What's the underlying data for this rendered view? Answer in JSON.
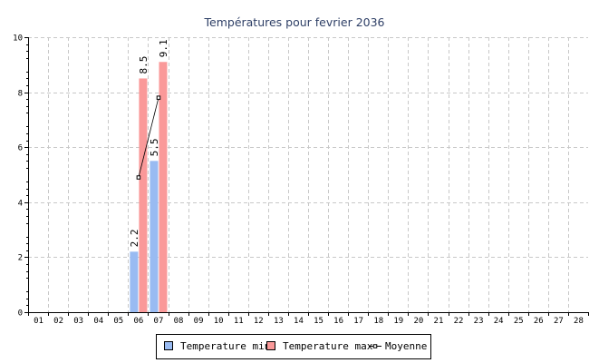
{
  "chart_data": {
    "type": "bar",
    "title": "Températures pour fevrier 2036",
    "xlabel": "",
    "ylabel": "",
    "categories": [
      "01",
      "02",
      "03",
      "04",
      "05",
      "06",
      "07",
      "08",
      "09",
      "10",
      "11",
      "12",
      "13",
      "14",
      "15",
      "16",
      "17",
      "18",
      "19",
      "20",
      "21",
      "22",
      "23",
      "24",
      "25",
      "26",
      "27",
      "28"
    ],
    "ylim": [
      0,
      10
    ],
    "yticks": [
      0,
      2,
      4,
      6,
      8,
      10
    ],
    "grid": true,
    "legend_position": "bottom",
    "series": [
      {
        "name": "Temperature min",
        "type": "bar",
        "color": "#99bbf2",
        "values": [
          null,
          null,
          null,
          null,
          null,
          2.2,
          5.5,
          null,
          null,
          null,
          null,
          null,
          null,
          null,
          null,
          null,
          null,
          null,
          null,
          null,
          null,
          null,
          null,
          null,
          null,
          null,
          null,
          null
        ],
        "labels": [
          null,
          null,
          null,
          null,
          null,
          "2.2",
          "5.5",
          null,
          null,
          null,
          null,
          null,
          null,
          null,
          null,
          null,
          null,
          null,
          null,
          null,
          null,
          null,
          null,
          null,
          null,
          null,
          null,
          null
        ]
      },
      {
        "name": "Temperature max",
        "type": "bar",
        "color": "#fa9999",
        "values": [
          null,
          null,
          null,
          null,
          null,
          8.5,
          9.1,
          null,
          null,
          null,
          null,
          null,
          null,
          null,
          null,
          null,
          null,
          null,
          null,
          null,
          null,
          null,
          null,
          null,
          null,
          null,
          null,
          null
        ],
        "labels": [
          null,
          null,
          null,
          null,
          null,
          "8.5",
          "9.1",
          null,
          null,
          null,
          null,
          null,
          null,
          null,
          null,
          null,
          null,
          null,
          null,
          null,
          null,
          null,
          null,
          null,
          null,
          null,
          null,
          null
        ]
      },
      {
        "name": "Moyenne",
        "type": "line",
        "color": "#000000",
        "values": [
          null,
          null,
          null,
          null,
          null,
          4.9,
          7.8,
          null,
          null,
          null,
          null,
          null,
          null,
          null,
          null,
          null,
          null,
          null,
          null,
          null,
          null,
          null,
          null,
          null,
          null,
          null,
          null,
          null
        ]
      }
    ]
  }
}
